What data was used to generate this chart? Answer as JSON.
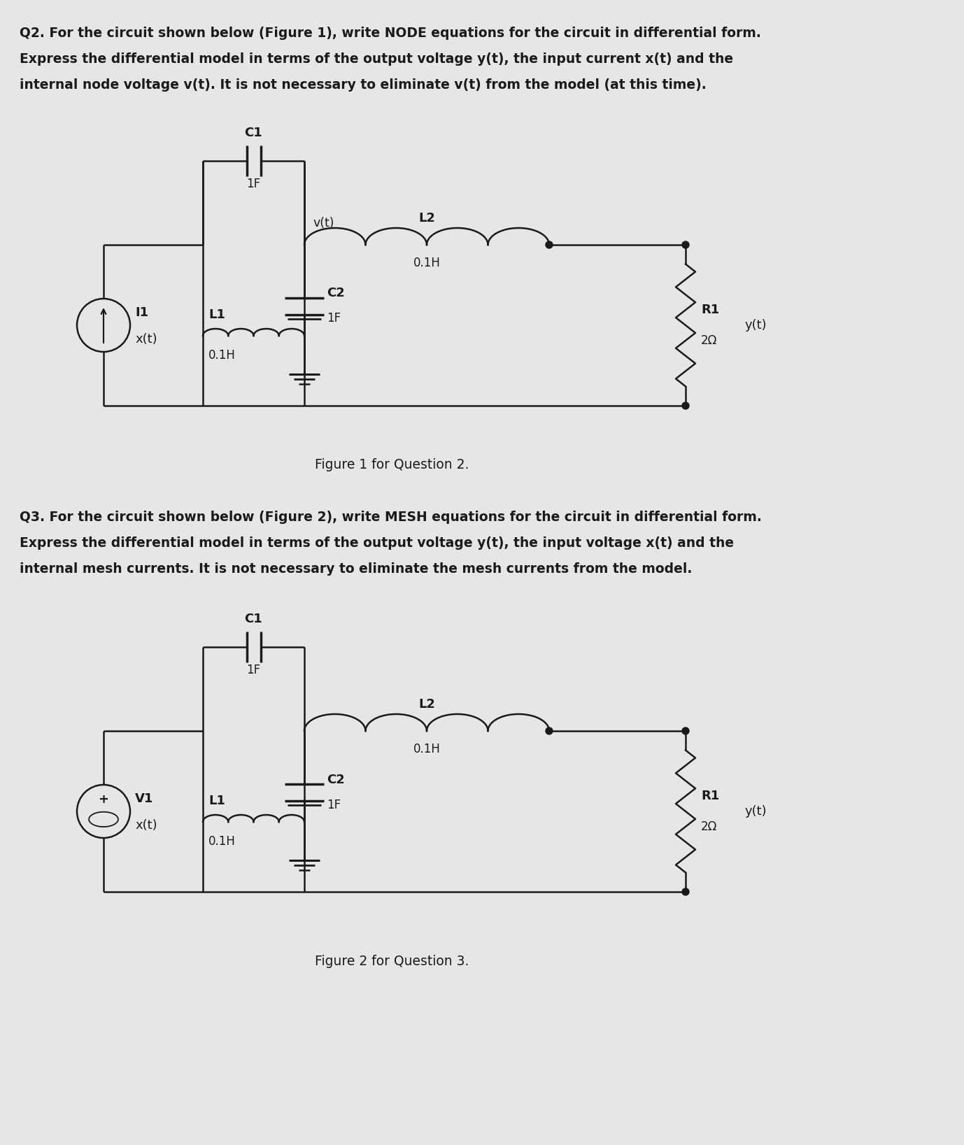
{
  "bg_color": "#e6e6e6",
  "line_color": "#1a1a1a",
  "q2_text_line1": "Q2. For the circuit shown below (Figure 1), write NODE equations for the circuit in differential form.",
  "q2_text_line2": "Express the differential model in terms of the output voltage y(t), the input current x(t) and the",
  "q2_text_line3": "internal node voltage v(t). It is not necessary to eliminate v(t) from the model (at this time).",
  "q3_text_line1": "Q3. For the circuit shown below (Figure 2), write MESH equations for the circuit in differential form.",
  "q3_text_line2": "Express the differential model in terms of the output voltage y(t), the input voltage x(t) and the",
  "q3_text_line3": "internal mesh currents. It is not necessary to eliminate the mesh currents from the model.",
  "fig1_caption": "Figure 1 for Question 2.",
  "fig2_caption": "Figure 2 for Question 3.",
  "c1_label": "C1",
  "c1_value": "1F",
  "l1_label": "L1",
  "l1_value": "0.1H",
  "c2_label": "C2",
  "c2_value": "1F",
  "l2_label": "L2",
  "l2_value": "0.1H",
  "r1_label": "R1",
  "r1_value": "2Ω",
  "i1_label": "I1",
  "v1_label": "V1",
  "xt_label": "x(t)",
  "vt_label": "v(t)",
  "yt_label": "y(t)"
}
